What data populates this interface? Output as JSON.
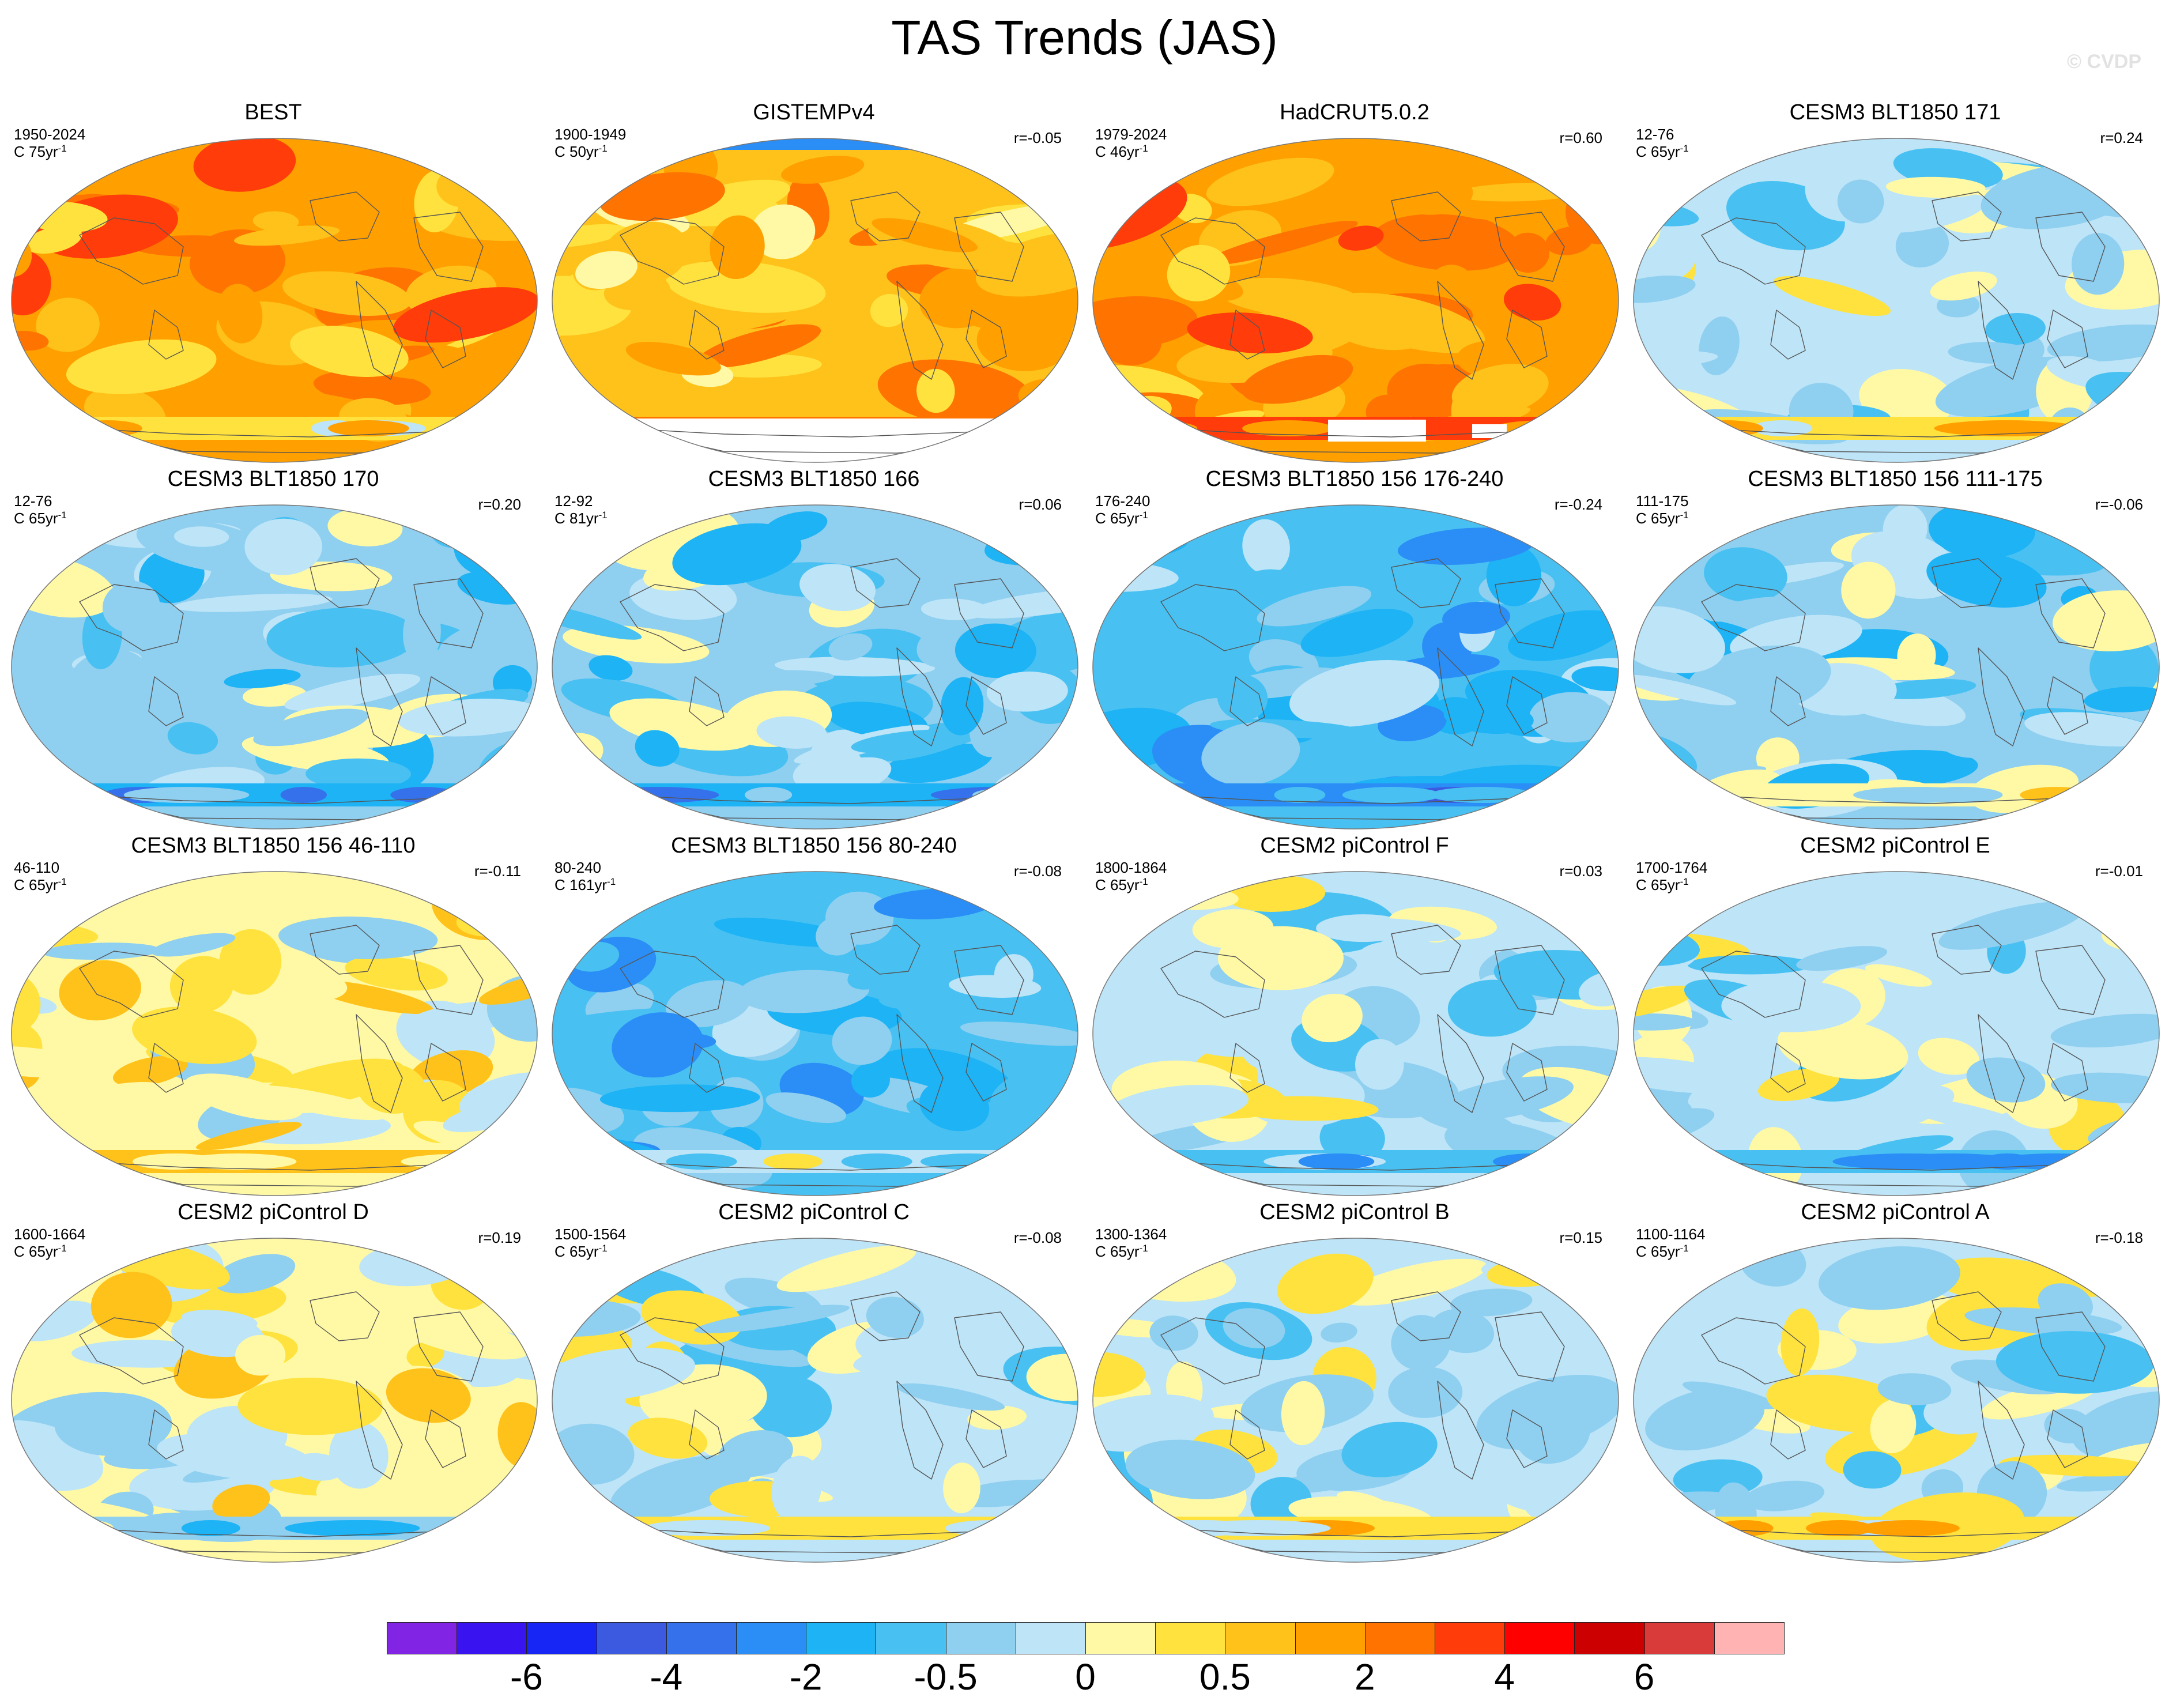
{
  "title": "TAS Trends (JAS)",
  "watermark": "© CVDP",
  "palette": [
    "#8224e3",
    "#3a14f0",
    "#1726f5",
    "#3c5ae0",
    "#3671ec",
    "#2a8ef6",
    "#1db3f5",
    "#48c1f2",
    "#8fcff0",
    "#bde4f7",
    "#fff9a6",
    "#ffe23d",
    "#ffc21a",
    "#ffa000",
    "#ff7300",
    "#ff3c0a",
    "#ff0000",
    "#cc0000",
    "#d93a3a",
    "#ffb3b3"
  ],
  "colorbar_labels": [
    "-6",
    "-4",
    "-2",
    "-0.5",
    "0",
    "0.5",
    "2",
    "4",
    "6"
  ],
  "panels": [
    {
      "title": "BEST",
      "period": "1950-2024",
      "length": "C 75yr",
      "r": "",
      "warm": 0.95,
      "seed": 3,
      "missing": "none"
    },
    {
      "title": "GISTEMPv4",
      "period": "1900-1949",
      "length": "C 50yr",
      "r": "r=-0.05",
      "warm": 0.55,
      "seed": 7,
      "missing": "antarctic"
    },
    {
      "title": "HadCRUT5.0.2",
      "period": "1979-2024",
      "length": "C 46yr",
      "r": "r=0.60",
      "warm": 1.0,
      "seed": 11,
      "missing": "patch"
    },
    {
      "title": "CESM3 BLT1850 171",
      "period": "12-76",
      "length": "C 65yr",
      "r": "r=0.24",
      "warm": -0.15,
      "seed": 13,
      "missing": "none"
    },
    {
      "title": "CESM3 BLT1850 170",
      "period": "12-76",
      "length": "C 65yr",
      "r": "r=0.20",
      "warm": -0.2,
      "seed": 17,
      "missing": "none"
    },
    {
      "title": "CESM3 BLT1850 166",
      "period": "12-92",
      "length": "C 81yr",
      "r": "r=0.06",
      "warm": -0.25,
      "seed": 19,
      "missing": "none"
    },
    {
      "title": "CESM3 BLT1850 156 176-240",
      "period": "176-240",
      "length": "C 65yr",
      "r": "r=-0.24",
      "warm": -0.45,
      "seed": 23,
      "missing": "none"
    },
    {
      "title": "CESM3 BLT1850 156 111-175",
      "period": "111-175",
      "length": "C 65yr",
      "r": "r=-0.06",
      "warm": -0.25,
      "seed": 29,
      "missing": "none"
    },
    {
      "title": "CESM3 BLT1850 156 46-110",
      "period": "46-110",
      "length": "C 65yr",
      "r": "r=-0.11",
      "warm": 0.3,
      "seed": 31,
      "missing": "none"
    },
    {
      "title": "CESM3 BLT1850 156 80-240",
      "period": "80-240",
      "length": "C 161yr",
      "r": "r=-0.08",
      "warm": -0.4,
      "seed": 37,
      "missing": "none"
    },
    {
      "title": "CESM2 piControl F",
      "period": "1800-1864",
      "length": "C 65yr",
      "r": "r=0.03",
      "warm": -0.05,
      "seed": 41,
      "missing": "none"
    },
    {
      "title": "CESM2 piControl E",
      "period": "1700-1764",
      "length": "C 65yr",
      "r": "r=-0.01",
      "warm": 0.0,
      "seed": 43,
      "missing": "none"
    },
    {
      "title": "CESM2 piControl D",
      "period": "1600-1664",
      "length": "C 65yr",
      "r": "r=0.19",
      "warm": 0.15,
      "seed": 47,
      "missing": "none"
    },
    {
      "title": "CESM2 piControl C",
      "period": "1500-1564",
      "length": "C 65yr",
      "r": "r=-0.08",
      "warm": -0.05,
      "seed": 53,
      "missing": "none"
    },
    {
      "title": "CESM2 piControl B",
      "period": "1300-1364",
      "length": "C 65yr",
      "r": "r=0.15",
      "warm": 0.05,
      "seed": 59,
      "missing": "none"
    },
    {
      "title": "CESM2 piControl A",
      "period": "1100-1164",
      "length": "C 65yr",
      "r": "r=-0.18",
      "warm": -0.1,
      "seed": 61,
      "missing": "none"
    }
  ]
}
